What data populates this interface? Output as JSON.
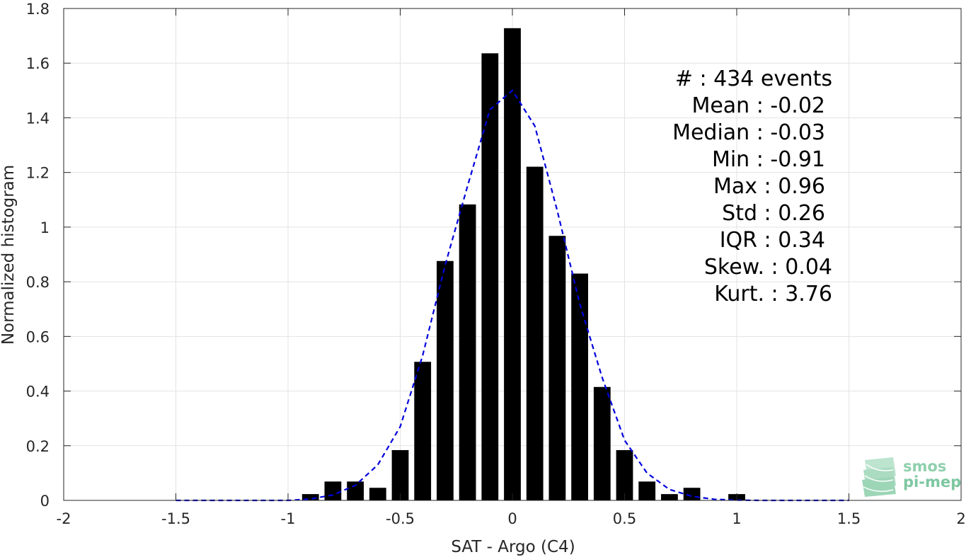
{
  "chart_data": {
    "type": "bar",
    "xlabel": "SAT - Argo (C4)",
    "ylabel": "Normalized histogram",
    "xlim": [
      -2,
      2
    ],
    "ylim": [
      0,
      1.8
    ],
    "xticks": [
      -2,
      -1.5,
      -1,
      -0.5,
      0,
      0.5,
      1,
      1.5,
      2
    ],
    "xtick_labels": [
      "-2",
      "-1.5",
      "-1",
      "-0.5",
      "0",
      "0.5",
      "1",
      "1.5",
      "2"
    ],
    "yticks": [
      0,
      0.2,
      0.4,
      0.6,
      0.8,
      1,
      1.2,
      1.4,
      1.6,
      1.8
    ],
    "ytick_labels": [
      "0",
      "0.2",
      "0.4",
      "0.6",
      "0.8",
      "1",
      "1.2",
      "1.4",
      "1.6",
      "1.8"
    ],
    "grid": true,
    "bar_color": "#000000",
    "bins": [
      {
        "x": -0.9,
        "value": 0.023
      },
      {
        "x": -0.8,
        "value": 0.069
      },
      {
        "x": -0.7,
        "value": 0.069
      },
      {
        "x": -0.6,
        "value": 0.046
      },
      {
        "x": -0.5,
        "value": 0.184
      },
      {
        "x": -0.4,
        "value": 0.507
      },
      {
        "x": -0.3,
        "value": 0.876
      },
      {
        "x": -0.2,
        "value": 1.083
      },
      {
        "x": -0.1,
        "value": 1.636
      },
      {
        "x": 0.0,
        "value": 1.728
      },
      {
        "x": 0.1,
        "value": 1.221
      },
      {
        "x": 0.2,
        "value": 0.968
      },
      {
        "x": 0.3,
        "value": 0.83
      },
      {
        "x": 0.4,
        "value": 0.415
      },
      {
        "x": 0.5,
        "value": 0.184
      },
      {
        "x": 0.6,
        "value": 0.069
      },
      {
        "x": 0.7,
        "value": 0.023
      },
      {
        "x": 0.8,
        "value": 0.046
      },
      {
        "x": 1.0,
        "value": 0.023
      }
    ],
    "bar_width": 0.075,
    "fit": {
      "color": "#0000dd",
      "style": "dashed",
      "x": [
        -1.5,
        -1.4,
        -1.3,
        -1.2,
        -1.1,
        -1.0,
        -0.9,
        -0.8,
        -0.7,
        -0.6,
        -0.5,
        -0.4,
        -0.3,
        -0.2,
        -0.1,
        0.0,
        0.1,
        0.2,
        0.3,
        0.4,
        0.5,
        0.6,
        0.7,
        0.8,
        0.9,
        1.0,
        1.1,
        1.2,
        1.3,
        1.4,
        1.5
      ],
      "y": [
        0.0,
        0.0,
        0.0,
        0.0,
        0.0,
        0.0,
        0.005,
        0.02,
        0.055,
        0.13,
        0.27,
        0.53,
        0.86,
        1.15,
        1.43,
        1.5,
        1.37,
        1.06,
        0.72,
        0.45,
        0.22,
        0.1,
        0.04,
        0.015,
        0.004,
        0.001,
        0.0,
        0.0,
        0.0,
        0.0,
        0.0
      ]
    },
    "stats": [
      {
        "label": "#  : 434 events",
        "anchor": "end",
        "offset": 0
      },
      {
        "label": "Mean : -0.02",
        "anchor": "end",
        "offset": -10
      },
      {
        "label": "Median : -0.03",
        "anchor": "end",
        "offset": -10
      },
      {
        "label": "Min : -0.91",
        "anchor": "end",
        "offset": -10
      },
      {
        "label": "Max : 0.96",
        "anchor": "end",
        "offset": -10
      },
      {
        "label": "Std : 0.26",
        "anchor": "end",
        "offset": -10
      },
      {
        "label": "IQR : 0.34",
        "anchor": "end",
        "offset": -10
      },
      {
        "label": "Skew. : 0.04",
        "anchor": "end",
        "offset": 0
      },
      {
        "label": "Kurt. : 3.76",
        "anchor": "end",
        "offset": 0
      }
    ]
  },
  "logo": {
    "line1": "smos",
    "line2": "pi-mep",
    "color": "#7dc7a0"
  }
}
